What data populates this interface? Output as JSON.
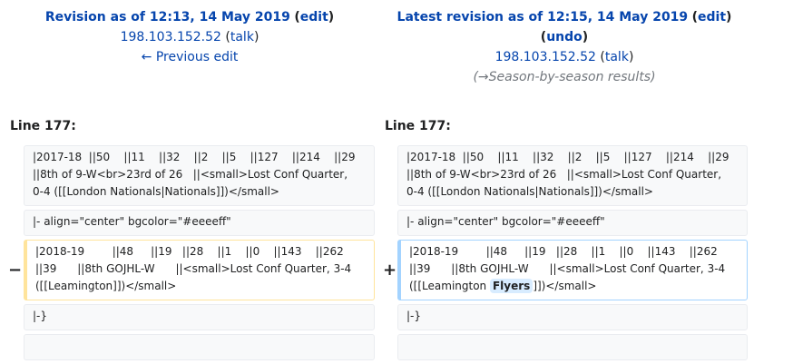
{
  "left_header": {
    "title_prefix": "Revision as of 12:13, 14 May 2019",
    "edit_link": "edit",
    "user": "198.103.152.52",
    "talk": "talk",
    "prev_edit": "← Previous edit"
  },
  "right_header": {
    "title_prefix": "Latest revision as of 12:15, 14 May 2019",
    "edit_link": "edit",
    "undo": "undo",
    "user": "198.103.152.52",
    "talk": "talk",
    "comment": "(→Season-by-season results)"
  },
  "left_line": "Line 177:",
  "right_line": "Line 177:",
  "markers": {
    "minus": "−",
    "plus": "+"
  },
  "context1": "|2017-18  ||50    ||11    ||32    ||2    ||5    ||127    ||214    ||29\n||8th of 9-W<br>23rd of 26   ||<small>Lost Conf Quarter,\n0-4 ([[London Nationals|Nationals]])</small>",
  "context2": "|- align=\"center\" bgcolor=\"#eeeeff\"",
  "deleted": "|2018-19        ||48     ||19   ||28    ||1    ||0    ||143    ||262\n||39      ||8th GOJHL-W      ||<small>Lost Conf Quarter, 3-4\n([[Leamington]])</small>",
  "added": {
    "before": "|2018-19        ||48     ||19   ||28    ||1    ||0    ||143    ||262\n||39      ||8th GOJHL-W      ||<small>Lost Conf Quarter, 3-4\n([[Leamington ",
    "highlight": "Flyers",
    "after": "]])</small>"
  },
  "context3": "|-}",
  "context4": ""
}
